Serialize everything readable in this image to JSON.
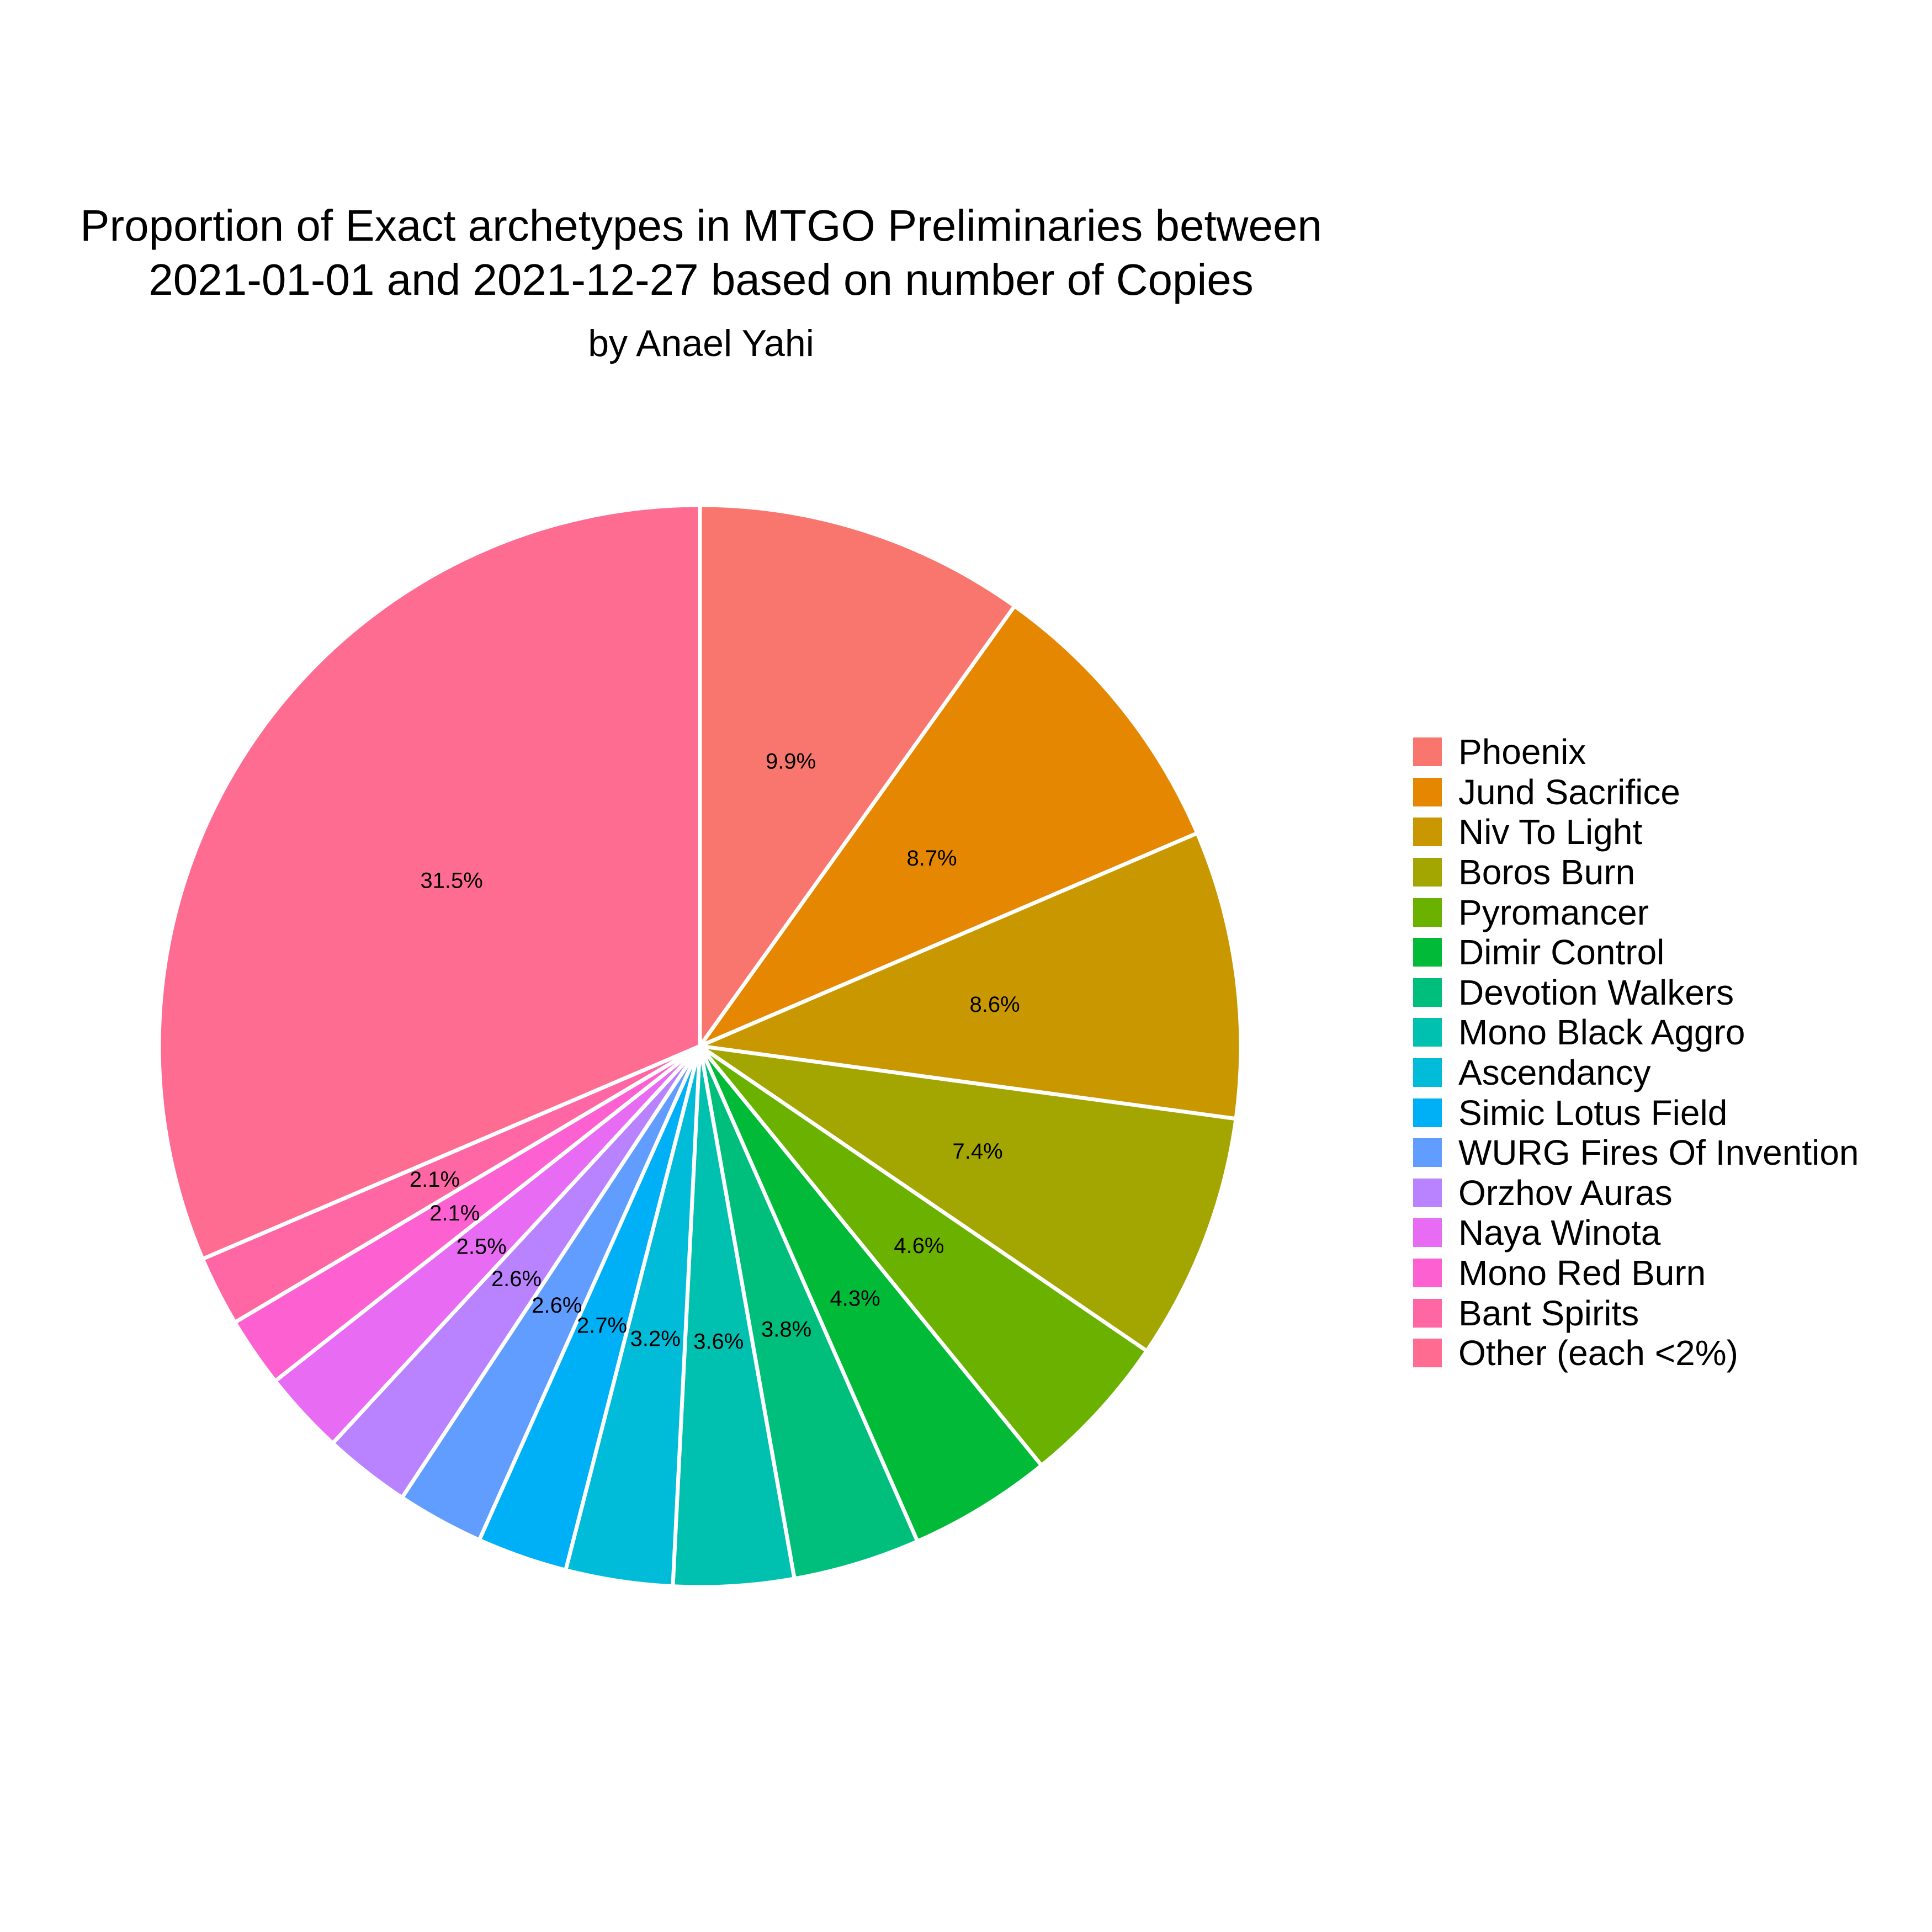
{
  "chart_data": {
    "type": "pie",
    "title_lines": [
      "Proportion of Exact archetypes in MTGO Preliminaries between",
      "2021-01-01 and 2021-12-27 based on number of Copies"
    ],
    "subtitle": "by Anael Yahi",
    "legend_position": "right",
    "start_angle": "12 o'clock",
    "direction": "clockwise",
    "slices": [
      {
        "name": "Phoenix",
        "value": 9.9,
        "label": "9.9%",
        "color": "#F8766D"
      },
      {
        "name": "Jund Sacrifice",
        "value": 8.7,
        "label": "8.7%",
        "color": "#E58700"
      },
      {
        "name": "Niv To Light",
        "value": 8.6,
        "label": "8.6%",
        "color": "#C99800"
      },
      {
        "name": "Boros Burn",
        "value": 7.4,
        "label": "7.4%",
        "color": "#A3A500"
      },
      {
        "name": "Pyromancer",
        "value": 4.6,
        "label": "4.6%",
        "color": "#6BB100"
      },
      {
        "name": "Dimir Control",
        "value": 4.3,
        "label": "4.3%",
        "color": "#00BA38"
      },
      {
        "name": "Devotion Walkers",
        "value": 3.8,
        "label": "3.8%",
        "color": "#00BF7D"
      },
      {
        "name": "Mono Black Aggro",
        "value": 3.6,
        "label": "3.6%",
        "color": "#00C0AF"
      },
      {
        "name": "Ascendancy",
        "value": 3.2,
        "label": "3.2%",
        "color": "#00BCD8"
      },
      {
        "name": "Simic Lotus Field",
        "value": 2.7,
        "label": "2.7%",
        "color": "#00B0F6"
      },
      {
        "name": "WURG Fires Of Invention",
        "value": 2.6,
        "label": "2.6%",
        "color": "#619CFF"
      },
      {
        "name": "Orzhov Auras",
        "value": 2.6,
        "label": "2.6%",
        "color": "#B983FF"
      },
      {
        "name": "Naya Winota",
        "value": 2.5,
        "label": "2.5%",
        "color": "#E76BF3"
      },
      {
        "name": "Mono Red Burn",
        "value": 2.1,
        "label": "2.1%",
        "color": "#FD61D1"
      },
      {
        "name": "Bant Spirits",
        "value": 2.1,
        "label": "2.1%",
        "color": "#FF67A4"
      },
      {
        "name": "Other (each <2%)",
        "value": 31.5,
        "label": "31.5%",
        "color": "#FF6C91"
      }
    ]
  }
}
